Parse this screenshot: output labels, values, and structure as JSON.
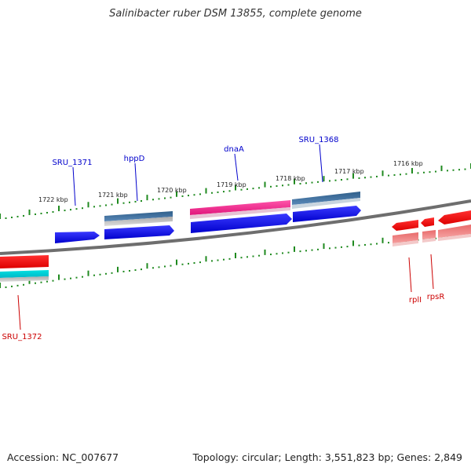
{
  "title": "Salinibacter ruber DSM 13855, complete genome",
  "footer": {
    "accession": "Accession: NC_007677",
    "summary": "Topology: circular; Length: 3,551,823 bp; Genes: 2,849"
  },
  "colors": {
    "backbone": "#7a7a7a",
    "tick": "#1f8a1f",
    "forward_cds": "#0000ee",
    "gene_label_forward": "#0000cc",
    "gene_label_reverse": "#cc0000",
    "reverse_cds": "#ff0000"
  },
  "scale_labels": [
    "1722 kbp",
    "1721 kbp",
    "1720 kbp",
    "1719 kbp",
    "1718 kbp",
    "1717 kbp",
    "1716 kbp"
  ],
  "gene_labels": {
    "forward": [
      "SRU_1371",
      "hppD",
      "dnaA",
      "SRU_1368"
    ],
    "reverse": [
      "SRU_1372",
      "rplI",
      "rpsR"
    ]
  }
}
